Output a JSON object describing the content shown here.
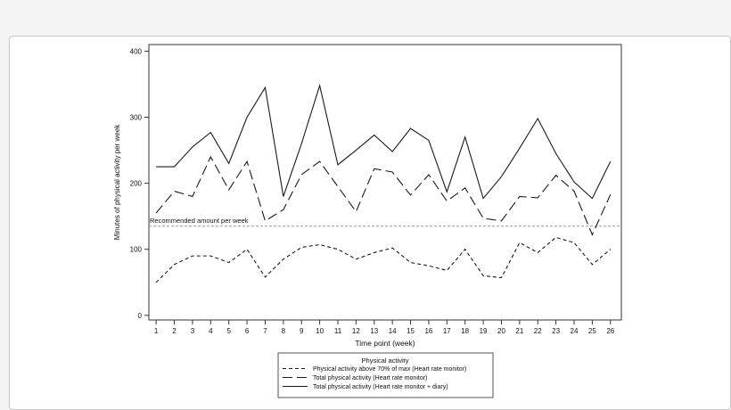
{
  "chart_data": {
    "type": "line",
    "title": "",
    "xlabel": "Time point (week)",
    "ylabel": "Minutes of physical activity per week",
    "x": [
      1,
      2,
      3,
      4,
      5,
      6,
      7,
      8,
      9,
      10,
      11,
      12,
      13,
      14,
      15,
      16,
      17,
      18,
      19,
      20,
      21,
      22,
      23,
      24,
      25,
      26
    ],
    "xlim": [
      0.6,
      26.6
    ],
    "ylim": [
      -7,
      410
    ],
    "yticks": [
      0,
      100,
      200,
      300,
      400
    ],
    "grid": false,
    "legend_position": "bottom",
    "legend_title": "Physical activity",
    "series": [
      {
        "name": "Physical activity above 70% of max (Heart rate monitor)",
        "style": "short-dash",
        "values": [
          50,
          77,
          90,
          90,
          80,
          100,
          58,
          85,
          103,
          107,
          100,
          85,
          95,
          102,
          80,
          75,
          68,
          100,
          60,
          57,
          110,
          95,
          118,
          110,
          77,
          100
        ]
      },
      {
        "name": "Total physical activity (Heart rate monitor)",
        "style": "long-dash",
        "values": [
          155,
          188,
          180,
          240,
          190,
          233,
          143,
          160,
          213,
          233,
          195,
          157,
          222,
          217,
          182,
          213,
          173,
          193,
          147,
          143,
          180,
          178,
          212,
          188,
          122,
          183
        ]
      },
      {
        "name": "Total physical activity (Heart rate monitor + diary)",
        "style": "solid",
        "values": [
          225,
          225,
          255,
          277,
          230,
          300,
          345,
          180,
          260,
          348,
          228,
          250,
          273,
          248,
          283,
          265,
          187,
          270,
          177,
          210,
          253,
          298,
          245,
          202,
          177,
          233
        ]
      }
    ],
    "reference_line": {
      "value": 135,
      "label": "Recommended amount per week",
      "color": "#9a9a9a"
    },
    "line_color": "#1a1a1a"
  }
}
